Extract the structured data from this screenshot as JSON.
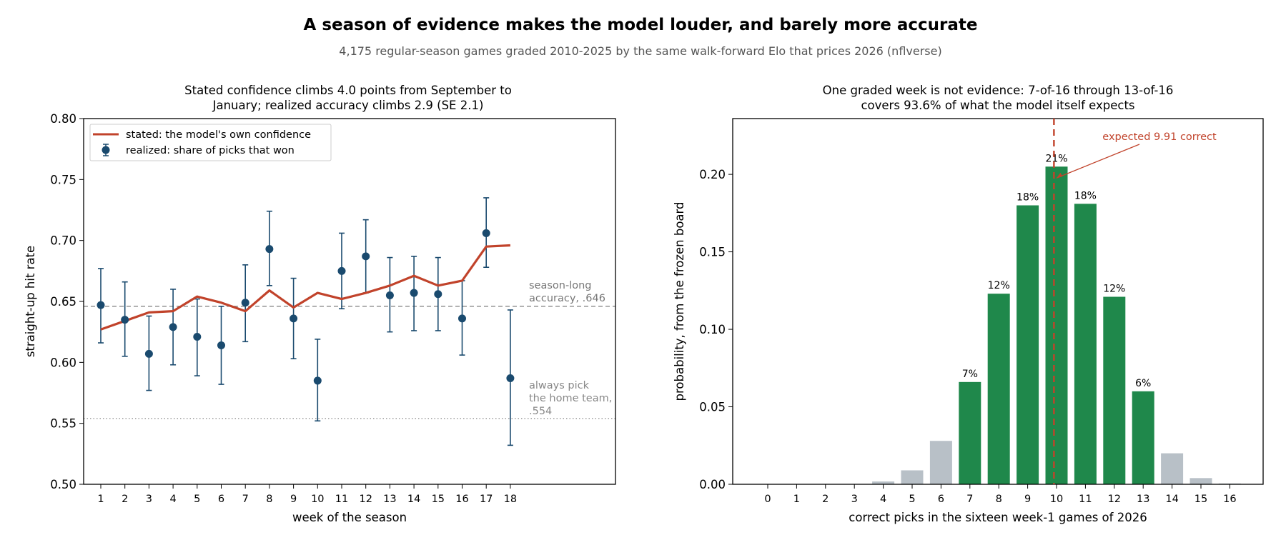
{
  "page": {
    "title": "A season of evidence makes the model louder, and barely more accurate",
    "subtitle": "4,175 regular-season games graded 2010-2025 by the same walk-forward Elo that prices 2026 (nflverse)"
  },
  "colors": {
    "stated_line": "#c1432b",
    "realized_points": "#1a4a6e",
    "bar_in_range": "#1f884b",
    "bar_out_range": "#b8c0c7",
    "reference_line": "#888888",
    "expected_marker": "#c1432b"
  },
  "chart_data": [
    {
      "type": "line",
      "title_lines": [
        "Stated confidence climbs 4.0 points from September to",
        "January; realized accuracy climbs 2.9 (SE 2.1)"
      ],
      "xlabel": "week of the season",
      "ylabel": "straight-up hit rate",
      "ylim": [
        0.5,
        0.8
      ],
      "yticks": [
        "0.50",
        "0.55",
        "0.60",
        "0.65",
        "0.70",
        "0.75",
        "0.80"
      ],
      "x": [
        1,
        2,
        3,
        4,
        5,
        6,
        7,
        8,
        9,
        10,
        11,
        12,
        13,
        14,
        15,
        16,
        17,
        18
      ],
      "legend_position": "upper-left",
      "series": [
        {
          "name": "stated: the model's own confidence",
          "kind": "line",
          "values": [
            0.627,
            0.634,
            0.641,
            0.642,
            0.654,
            0.649,
            0.642,
            0.659,
            0.645,
            0.657,
            0.652,
            0.657,
            0.663,
            0.671,
            0.663,
            0.667,
            0.695,
            0.696
          ]
        },
        {
          "name": "realized: share of picks that won",
          "kind": "errorbar",
          "values": [
            0.647,
            0.635,
            0.607,
            0.629,
            0.621,
            0.614,
            0.649,
            0.693,
            0.636,
            0.585,
            0.675,
            0.687,
            0.655,
            0.657,
            0.656,
            0.636,
            0.706,
            0.587
          ],
          "err_low": [
            0.616,
            0.605,
            0.577,
            0.598,
            0.589,
            0.582,
            0.617,
            0.663,
            0.603,
            0.552,
            0.644,
            0.657,
            0.625,
            0.626,
            0.626,
            0.606,
            0.678,
            0.532
          ],
          "err_high": [
            0.677,
            0.666,
            0.638,
            0.66,
            0.652,
            0.646,
            0.68,
            0.724,
            0.669,
            0.619,
            0.706,
            0.717,
            0.686,
            0.687,
            0.686,
            0.667,
            0.735,
            0.643
          ]
        }
      ],
      "reference_lines": [
        {
          "value": 0.646,
          "style": "dashed",
          "label_lines": [
            "season-long",
            "accuracy, .646"
          ]
        },
        {
          "value": 0.554,
          "style": "dotted",
          "label_lines": [
            "always pick",
            "the home team,",
            ".554"
          ]
        }
      ]
    },
    {
      "type": "bar",
      "title_lines": [
        "One graded week is not evidence: 7-of-16 through 13-of-16",
        "covers 93.6% of what the model itself expects"
      ],
      "xlabel": "correct picks in the sixteen week-1 games of 2026",
      "ylabel": "probability, from the frozen board",
      "ylim": [
        0,
        0.236
      ],
      "yticks": [
        "0.00",
        "0.05",
        "0.10",
        "0.15",
        "0.20"
      ],
      "categories": [
        "0",
        "1",
        "2",
        "3",
        "4",
        "5",
        "6",
        "7",
        "8",
        "9",
        "10",
        "11",
        "12",
        "13",
        "14",
        "15",
        "16"
      ],
      "values": [
        0.0,
        0.0,
        0.0,
        0.0002,
        0.0018,
        0.009,
        0.028,
        0.066,
        0.123,
        0.18,
        0.205,
        0.181,
        0.121,
        0.06,
        0.02,
        0.004,
        0.0005
      ],
      "highlight_range": [
        7,
        13
      ],
      "bar_labels": [
        "",
        "",
        "",
        "",
        "",
        "",
        "",
        "7%",
        "12%",
        "18%",
        "21%",
        "18%",
        "12%",
        "6%",
        "",
        "",
        ""
      ],
      "expected_value": 9.91,
      "annotation": "expected 9.91 correct"
    }
  ]
}
